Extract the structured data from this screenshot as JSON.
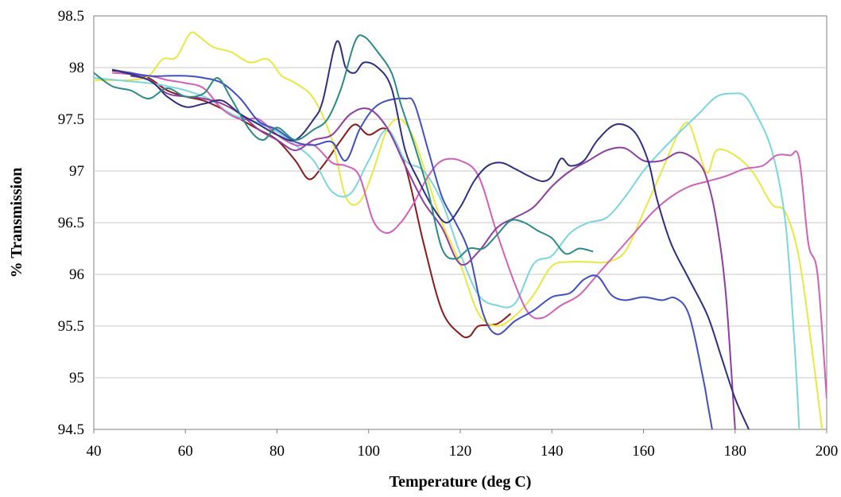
{
  "chart_data": {
    "type": "line",
    "title": "",
    "xlabel": "Temperature (deg C)",
    "ylabel": "% Transmission",
    "xlim": [
      40,
      200
    ],
    "ylim": [
      94.5,
      98.5
    ],
    "xticks": [
      40,
      60,
      80,
      100,
      120,
      140,
      160,
      180,
      200
    ],
    "yticks": [
      94.5,
      95,
      95.5,
      96,
      96.5,
      97,
      97.5,
      98,
      98.5
    ],
    "x_tick_labels": [
      "40",
      "60",
      "80",
      "100",
      "120",
      "140",
      "160",
      "180",
      "200"
    ],
    "y_tick_labels": [
      "94.5",
      "95",
      "95.5",
      "96",
      "96.5",
      "97",
      "97.5",
      "98",
      "98.5"
    ],
    "grid": "horizontal",
    "legend": "none",
    "series": [
      {
        "color": "#8B1A1A",
        "x": [
          44,
          48,
          52,
          56,
          60,
          64,
          68,
          72,
          76,
          80,
          84,
          87,
          90,
          94,
          97,
          100,
          104,
          108,
          112,
          116,
          120,
          122,
          124,
          128,
          131
        ],
        "y": [
          97.97,
          97.95,
          97.9,
          97.78,
          97.72,
          97.68,
          97.6,
          97.5,
          97.4,
          97.3,
          97.1,
          96.92,
          97.05,
          97.3,
          97.45,
          97.35,
          97.4,
          97.05,
          96.3,
          95.65,
          95.42,
          95.4,
          95.5,
          95.52,
          95.62
        ]
      },
      {
        "color": "#E8E840",
        "x": [
          40,
          48,
          52,
          55,
          58,
          61,
          63,
          66,
          70,
          74,
          78,
          81,
          84,
          88,
          92,
          95,
          98,
          101,
          104,
          107,
          110,
          113,
          116,
          120,
          124,
          128,
          132,
          136,
          140,
          144,
          148,
          152,
          156,
          160,
          164,
          168,
          170,
          172,
          174,
          176,
          180,
          184,
          188,
          191,
          194,
          197,
          199
        ],
        "y": [
          97.88,
          97.88,
          97.92,
          98.08,
          98.1,
          98.33,
          98.3,
          98.2,
          98.15,
          98.05,
          98.08,
          97.92,
          97.85,
          97.7,
          97.3,
          96.75,
          96.7,
          97.0,
          97.4,
          97.5,
          97.3,
          96.9,
          96.5,
          96.1,
          95.62,
          95.5,
          95.6,
          95.8,
          96.08,
          96.12,
          96.12,
          96.12,
          96.22,
          96.6,
          97.0,
          97.4,
          97.45,
          97.2,
          96.98,
          97.2,
          97.15,
          96.98,
          96.68,
          96.6,
          96.15,
          95.2,
          94.5
        ]
      },
      {
        "color": "#7BD5DD",
        "x": [
          40,
          52,
          56,
          60,
          65,
          70,
          75,
          80,
          84,
          88,
          92,
          96,
          100,
          104,
          108,
          112,
          116,
          120,
          124,
          128,
          132,
          136,
          140,
          144,
          148,
          152,
          156,
          160,
          164,
          168,
          172,
          176,
          180,
          182,
          184,
          188,
          191,
          193,
          194
        ],
        "y": [
          97.9,
          97.85,
          97.82,
          97.78,
          97.7,
          97.55,
          97.48,
          97.38,
          97.25,
          97.1,
          96.8,
          96.78,
          97.1,
          97.4,
          97.1,
          97.0,
          96.7,
          96.2,
          95.8,
          95.7,
          95.72,
          96.1,
          96.18,
          96.4,
          96.5,
          96.55,
          96.75,
          97.0,
          97.2,
          97.38,
          97.55,
          97.72,
          97.75,
          97.73,
          97.6,
          97.2,
          96.5,
          95.3,
          94.5
        ]
      },
      {
        "color": "#D060B8",
        "x": [
          44,
          52,
          56,
          60,
          64,
          68,
          72,
          76,
          80,
          84,
          88,
          92,
          95,
          98,
          101,
          104,
          107,
          110,
          113,
          116,
          120,
          124,
          128,
          132,
          135,
          138,
          142,
          146,
          150,
          154,
          158,
          162,
          166,
          170,
          174,
          178,
          182,
          186,
          189,
          192,
          194,
          196,
          198,
          200
        ],
        "y": [
          97.95,
          97.92,
          97.88,
          97.85,
          97.8,
          97.6,
          97.5,
          97.5,
          97.35,
          97.25,
          97.25,
          97.08,
          97.05,
          96.95,
          96.52,
          96.4,
          96.5,
          96.7,
          96.95,
          97.1,
          97.1,
          96.95,
          96.4,
          95.9,
          95.62,
          95.58,
          95.7,
          95.8,
          96.0,
          96.2,
          96.4,
          96.6,
          96.75,
          96.85,
          96.9,
          96.95,
          97.02,
          97.05,
          97.15,
          97.15,
          97.12,
          96.3,
          96.0,
          94.8
        ]
      },
      {
        "color": "#4050C0",
        "x": [
          44,
          52,
          56,
          60,
          64,
          68,
          72,
          76,
          80,
          84,
          88,
          92,
          95,
          98,
          101,
          104,
          108,
          110,
          113,
          116,
          119,
          122,
          125,
          128,
          132,
          136,
          140,
          144,
          147,
          150,
          153,
          156,
          160,
          164,
          167,
          170,
          173,
          174,
          175
        ],
        "y": [
          97.98,
          97.92,
          97.92,
          97.92,
          97.9,
          97.85,
          97.7,
          97.48,
          97.4,
          97.28,
          97.25,
          97.28,
          97.1,
          97.4,
          97.6,
          97.68,
          97.7,
          97.65,
          97.2,
          96.75,
          96.5,
          96.2,
          95.62,
          95.42,
          95.55,
          95.65,
          95.78,
          95.82,
          95.95,
          95.98,
          95.8,
          95.75,
          95.78,
          95.75,
          95.77,
          95.6,
          95.0,
          94.75,
          94.5
        ]
      },
      {
        "color": "#8E3EA0",
        "x": [
          48,
          52,
          56,
          60,
          64,
          68,
          72,
          76,
          80,
          84,
          88,
          92,
          96,
          100,
          104,
          108,
          112,
          116,
          120,
          124,
          128,
          132,
          136,
          140,
          144,
          148,
          152,
          156,
          160,
          164,
          168,
          172,
          174,
          176,
          178,
          180
        ],
        "y": [
          97.92,
          97.88,
          97.75,
          97.72,
          97.7,
          97.65,
          97.55,
          97.4,
          97.3,
          97.2,
          97.3,
          97.35,
          97.55,
          97.6,
          97.42,
          97.05,
          96.7,
          96.45,
          96.1,
          96.22,
          96.45,
          96.55,
          96.65,
          96.85,
          97.0,
          97.1,
          97.2,
          97.22,
          97.1,
          97.1,
          97.18,
          97.08,
          96.9,
          96.5,
          95.8,
          94.5
        ]
      },
      {
        "color": "#2F2F80",
        "x": [
          44,
          52,
          56,
          60,
          64,
          68,
          72,
          76,
          80,
          84,
          88,
          90,
          93,
          95,
          97,
          99,
          102,
          105,
          108,
          111,
          114,
          117,
          120,
          123,
          126,
          129,
          132,
          135,
          138,
          140,
          142,
          144,
          147,
          150,
          154,
          158,
          161,
          163,
          166,
          170,
          174,
          177,
          180,
          183
        ],
        "y": [
          97.98,
          97.88,
          97.72,
          97.62,
          97.65,
          97.68,
          97.55,
          97.45,
          97.35,
          97.3,
          97.5,
          97.68,
          98.25,
          98.0,
          97.95,
          98.05,
          98.0,
          97.8,
          97.2,
          96.9,
          96.65,
          96.5,
          96.65,
          96.9,
          97.05,
          97.08,
          97.02,
          96.95,
          96.9,
          96.95,
          97.12,
          97.05,
          97.1,
          97.3,
          97.45,
          97.38,
          97.1,
          96.72,
          96.3,
          95.95,
          95.6,
          95.2,
          94.8,
          94.5
        ]
      },
      {
        "color": "#2A8A85",
        "x": [
          40,
          44,
          48,
          52,
          56,
          60,
          64,
          67,
          70,
          74,
          77,
          80,
          84,
          88,
          91,
          94,
          97,
          99,
          102,
          105,
          107,
          110,
          113,
          116,
          119,
          122,
          125,
          128,
          131,
          134,
          137,
          140,
          143,
          146,
          149
        ],
        "y": [
          97.95,
          97.82,
          97.78,
          97.7,
          97.8,
          97.72,
          97.75,
          97.9,
          97.7,
          97.4,
          97.3,
          97.42,
          97.3,
          97.4,
          97.5,
          97.8,
          98.25,
          98.3,
          98.15,
          97.95,
          97.65,
          97.25,
          96.8,
          96.25,
          96.15,
          96.25,
          96.25,
          96.38,
          96.52,
          96.5,
          96.42,
          96.35,
          96.2,
          96.25,
          96.22
        ]
      }
    ]
  }
}
